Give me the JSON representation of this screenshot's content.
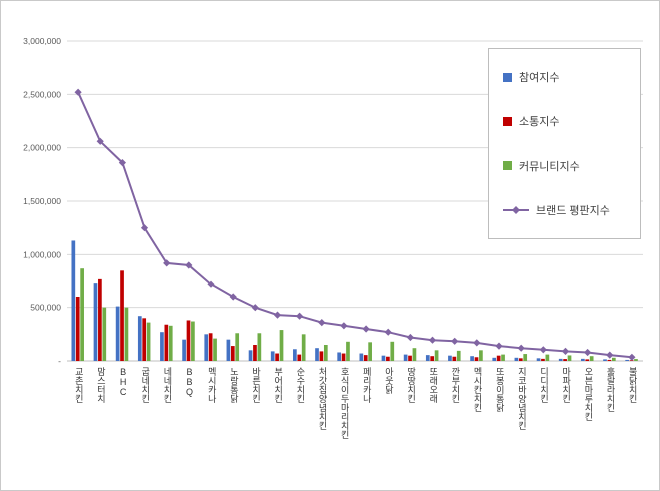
{
  "chart_data": {
    "type": "bar",
    "subtype": "grouped-bars-with-line",
    "title": "",
    "categories": [
      "교촌치킨",
      "맘스터치",
      "BHC",
      "굽네치킨",
      "네네치킨",
      "BBQ",
      "멕시카나",
      "노랑통닭",
      "바른치킨",
      "부어치킨",
      "순수치킨",
      "처갓집양념치킨",
      "호식이두마리치킨",
      "페리카나",
      "아웃닭",
      "땅땅치킨",
      "또래오래",
      "깐부치킨",
      "멕시칸치킨",
      "또봉이통닭",
      "지코바양념치킨",
      "디디치킨",
      "마파치킨",
      "오븐마루치킨",
      "훌랄라치킨",
      "불닭치킨"
    ],
    "series": [
      {
        "name": "참여지수",
        "color": "#4472C4",
        "values": [
          1130000,
          730000,
          510000,
          420000,
          270000,
          200000,
          250000,
          200000,
          100000,
          90000,
          110000,
          120000,
          80000,
          70000,
          50000,
          60000,
          55000,
          50000,
          45000,
          30000,
          30000,
          25000,
          20000,
          20000,
          15000,
          10000
        ]
      },
      {
        "name": "소통지수",
        "color": "#C00000",
        "values": [
          600000,
          770000,
          850000,
          400000,
          340000,
          380000,
          260000,
          140000,
          150000,
          70000,
          60000,
          90000,
          70000,
          55000,
          40000,
          50000,
          45000,
          40000,
          35000,
          50000,
          25000,
          20000,
          18000,
          15000,
          10000,
          7000
        ]
      },
      {
        "name": "커뮤니티지수",
        "color": "#70AD47",
        "values": [
          870000,
          500000,
          500000,
          360000,
          330000,
          370000,
          210000,
          260000,
          260000,
          290000,
          250000,
          150000,
          180000,
          175000,
          180000,
          120000,
          100000,
          95000,
          100000,
          60000,
          65000,
          60000,
          52000,
          45000,
          30000,
          18000
        ]
      }
    ],
    "line_series": {
      "name": "브랜드 평판지수",
      "color": "#8064A2",
      "values": [
        2520000,
        2060000,
        1860000,
        1250000,
        920000,
        900000,
        720000,
        600000,
        500000,
        430000,
        420000,
        360000,
        330000,
        300000,
        270000,
        220000,
        195000,
        185000,
        170000,
        140000,
        120000,
        105000,
        90000,
        80000,
        55000,
        35000
      ]
    },
    "xlabel": "",
    "ylabel": "",
    "ylim": [
      0,
      3000000
    ],
    "ytick_interval": 500000,
    "ytick_zero_label": "-",
    "grid": true,
    "legend_position": "right-top"
  }
}
